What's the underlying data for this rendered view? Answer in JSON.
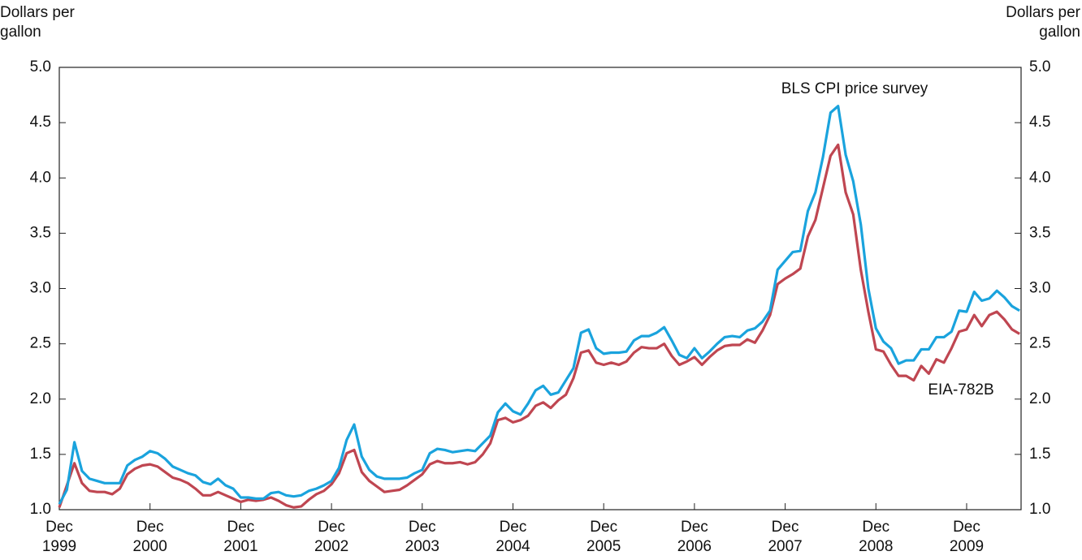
{
  "chart_data": {
    "type": "line",
    "y_label": "Dollars per gallon",
    "y2_label": "Dollars per gallon",
    "annotations": [
      "BLS CPI price survey",
      "EIA-782B"
    ],
    "categories": [
      "Dec 1999",
      null,
      null,
      null,
      null,
      null,
      null,
      null,
      null,
      null,
      null,
      null,
      "Dec 2000",
      null,
      null,
      null,
      null,
      null,
      null,
      null,
      null,
      null,
      null,
      null,
      "Dec 2001",
      null,
      null,
      null,
      null,
      null,
      null,
      null,
      null,
      null,
      null,
      null,
      "Dec 2002",
      null,
      null,
      null,
      null,
      null,
      null,
      null,
      null,
      null,
      null,
      null,
      "Dec 2003",
      null,
      null,
      null,
      null,
      null,
      null,
      null,
      null,
      null,
      null,
      null,
      "Dec 2004",
      null,
      null,
      null,
      null,
      null,
      null,
      null,
      null,
      null,
      null,
      null,
      "Dec 2005",
      null,
      null,
      null,
      null,
      null,
      null,
      null,
      null,
      null,
      null,
      null,
      "Dec 2006",
      null,
      null,
      null,
      null,
      null,
      null,
      null,
      null,
      null,
      null,
      null,
      "Dec 2007",
      null,
      null,
      null,
      null,
      null,
      null,
      null,
      null,
      null,
      null,
      null,
      "Dec 2008",
      null,
      null,
      null,
      null,
      null,
      null,
      null,
      null,
      null,
      null,
      null,
      "Dec 2009",
      null,
      null,
      null,
      null,
      null,
      null,
      null
    ],
    "series": [
      {
        "name": "BLS CPI price survey",
        "color": "#1aa3dd",
        "values": [
          1.05,
          1.18,
          1.61,
          1.35,
          1.28,
          1.26,
          1.24,
          1.24,
          1.24,
          1.4,
          1.45,
          1.48,
          1.53,
          1.51,
          1.46,
          1.39,
          1.36,
          1.33,
          1.31,
          1.25,
          1.23,
          1.28,
          1.22,
          1.19,
          1.11,
          1.11,
          1.1,
          1.1,
          1.15,
          1.16,
          1.13,
          1.12,
          1.13,
          1.17,
          1.19,
          1.22,
          1.26,
          1.38,
          1.63,
          1.77,
          1.48,
          1.36,
          1.3,
          1.28,
          1.28,
          1.28,
          1.29,
          1.33,
          1.36,
          1.51,
          1.55,
          1.54,
          1.52,
          1.53,
          1.54,
          1.53,
          1.6,
          1.67,
          1.88,
          1.96,
          1.89,
          1.86,
          1.96,
          2.08,
          2.12,
          2.04,
          2.06,
          2.17,
          2.28,
          2.6,
          2.63,
          2.46,
          2.41,
          2.42,
          2.42,
          2.43,
          2.53,
          2.57,
          2.57,
          2.6,
          2.65,
          2.53,
          2.4,
          2.37,
          2.46,
          2.37,
          2.43,
          2.5,
          2.56,
          2.57,
          2.56,
          2.62,
          2.64,
          2.7,
          2.8,
          3.17,
          3.25,
          3.33,
          3.34,
          3.7,
          3.87,
          4.19,
          4.59,
          4.65,
          4.21,
          3.97,
          3.58,
          3.0,
          2.64,
          2.52,
          2.46,
          2.32,
          2.35,
          2.35,
          2.45,
          2.45,
          2.56,
          2.56,
          2.61,
          2.8,
          2.79,
          2.97,
          2.89,
          2.91,
          2.98,
          2.92,
          2.84,
          2.8
        ]
      },
      {
        "name": "EIA-782B",
        "color": "#bf4651",
        "values": [
          1.02,
          1.22,
          1.42,
          1.24,
          1.17,
          1.16,
          1.16,
          1.14,
          1.19,
          1.32,
          1.37,
          1.4,
          1.41,
          1.39,
          1.34,
          1.29,
          1.27,
          1.24,
          1.19,
          1.13,
          1.13,
          1.16,
          1.13,
          1.1,
          1.07,
          1.09,
          1.08,
          1.09,
          1.11,
          1.08,
          1.04,
          1.02,
          1.03,
          1.09,
          1.14,
          1.17,
          1.23,
          1.33,
          1.51,
          1.54,
          1.34,
          1.26,
          1.21,
          1.16,
          1.17,
          1.18,
          1.22,
          1.27,
          1.32,
          1.41,
          1.44,
          1.42,
          1.42,
          1.43,
          1.41,
          1.43,
          1.5,
          1.6,
          1.81,
          1.83,
          1.79,
          1.81,
          1.85,
          1.94,
          1.97,
          1.92,
          1.99,
          2.04,
          2.19,
          2.42,
          2.44,
          2.33,
          2.31,
          2.33,
          2.31,
          2.34,
          2.42,
          2.47,
          2.46,
          2.46,
          2.5,
          2.39,
          2.31,
          2.34,
          2.38,
          2.31,
          2.38,
          2.44,
          2.48,
          2.49,
          2.49,
          2.54,
          2.51,
          2.62,
          2.76,
          3.04,
          3.09,
          3.13,
          3.18,
          3.47,
          3.62,
          3.91,
          4.2,
          4.3,
          3.87,
          3.67,
          3.17,
          2.79,
          2.45,
          2.43,
          2.31,
          2.21,
          2.21,
          2.17,
          2.3,
          2.23,
          2.36,
          2.33,
          2.46,
          2.61,
          2.63,
          2.76,
          2.66,
          2.76,
          2.79,
          2.72,
          2.63,
          2.59
        ]
      }
    ],
    "ylim": [
      1,
      5
    ],
    "yticks": [
      {
        "value": 1,
        "label": "1.0"
      },
      1.5,
      {
        "value": 2,
        "label": "2.0"
      },
      2.5,
      {
        "value": 3,
        "label": "3.0"
      },
      3.5,
      {
        "value": 4,
        "label": "4.0"
      },
      4.5,
      {
        "value": 5,
        "label": "5.0"
      }
    ],
    "y2lim": [
      1,
      5
    ],
    "y2ticks": [
      {
        "value": 1,
        "label": "1.0"
      },
      1.5,
      {
        "value": 2,
        "label": "2.0"
      },
      2.5,
      {
        "value": 3,
        "label": "3.0"
      },
      3.5,
      {
        "value": 4,
        "label": "4.0"
      },
      4.5,
      {
        "value": 5,
        "label": "5.0"
      }
    ],
    "grid": false
  }
}
